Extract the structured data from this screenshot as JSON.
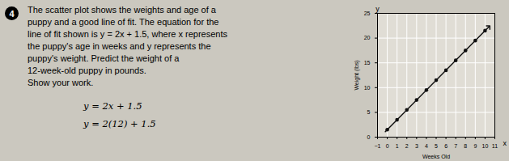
{
  "chart_data": {
    "type": "scatter",
    "xlabel": "Weeks Old",
    "ylabel": "Weight (lbs)",
    "xlim": [
      -1,
      11
    ],
    "ylim": [
      0,
      25
    ],
    "xticks": [
      -1,
      0,
      1,
      2,
      3,
      4,
      5,
      6,
      7,
      8,
      9,
      10,
      11
    ],
    "yticks": [
      0,
      5,
      10,
      15,
      20,
      25
    ],
    "grid": true,
    "x": [
      0,
      1,
      2,
      3,
      4,
      5,
      6,
      7,
      8,
      9,
      10
    ],
    "values": [
      1.5,
      3.5,
      5.5,
      7.5,
      9.5,
      11.5,
      13.5,
      15.5,
      17.5,
      19.5,
      21.5
    ],
    "color": "#111111",
    "marker": "circle",
    "fit_line": {
      "type": "line",
      "x": [
        -0.2,
        10.4
      ],
      "values": [
        1.1,
        22.3
      ],
      "color": "#111111",
      "marker": "arrow"
    },
    "axis_names": {
      "x": "x",
      "y": "y"
    }
  },
  "question_number": "4",
  "question_lines": [
    "The scatter plot shows the weights and age of a",
    "puppy and a good line of fit. The equation for the",
    "line of fit shown is y = 2x + 1.5, where x represents",
    "the puppy's age in weeks and y represents the",
    "puppy's weight. Predict the weight of a",
    "12-week-old puppy in pounds.",
    "Show your work."
  ],
  "work_lines": [
    "y = 2x + 1.5",
    "y = 2(12) + 1.5"
  ]
}
